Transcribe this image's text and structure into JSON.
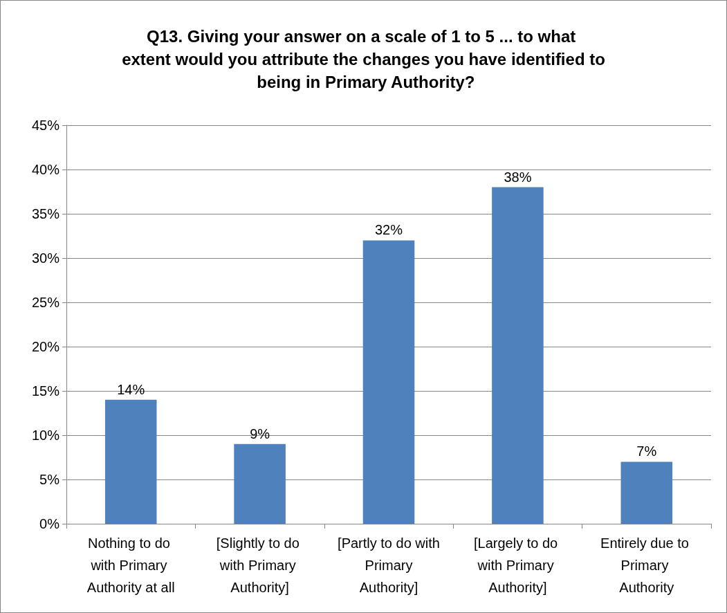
{
  "chart_data": {
    "type": "bar",
    "title": "Q13. Giving your answer on a scale of 1 to 5 ... to what extent would you attribute the changes you have identified to being in Primary Authority?",
    "categories": [
      "Nothing to do with Primary Authority at all",
      "[Slightly to do with Primary Authority]",
      "[Partly to do with Primary Authority]",
      "[Largely to do with Primary Authority]",
      "Entirely due to Primary Authority"
    ],
    "values": [
      14,
      9,
      32,
      38,
      7
    ],
    "value_labels": [
      "14%",
      "9%",
      "32%",
      "38%",
      "7%"
    ],
    "color": "#4f81bd",
    "ylim": [
      0,
      45
    ],
    "yticks": [
      {
        "value": 0,
        "label": "0%"
      },
      {
        "value": 5,
        "label": "5%"
      },
      {
        "value": 10,
        "label": "10%"
      },
      {
        "value": 15,
        "label": "15%"
      },
      {
        "value": 20,
        "label": "20%"
      },
      {
        "value": 25,
        "label": "25%"
      },
      {
        "value": 30,
        "label": "30%"
      },
      {
        "value": 35,
        "label": "35%"
      },
      {
        "value": 40,
        "label": "40%"
      },
      {
        "value": 45,
        "label": "45%"
      }
    ],
    "grid": "y"
  }
}
